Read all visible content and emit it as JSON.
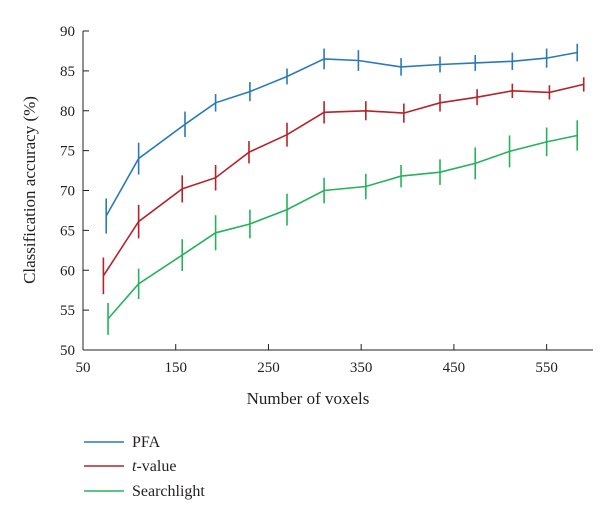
{
  "chart_data": {
    "type": "line",
    "xlabel": "Number of  voxels",
    "ylabel": "Classification accuracy (%)",
    "xlim": [
      50,
      600
    ],
    "ylim": [
      50,
      90
    ],
    "xticks": [
      50,
      150,
      250,
      350,
      450,
      550
    ],
    "yticks": [
      50,
      55,
      60,
      65,
      70,
      75,
      80,
      85,
      90
    ],
    "error_bars": true,
    "grid": false,
    "legend": {
      "placement": "bottom-left"
    },
    "series": [
      {
        "name": "PFA",
        "color": "#2a7ab8",
        "x": [
          75,
          110,
          160,
          193,
          230,
          270,
          310,
          347,
          393,
          435,
          473,
          513,
          550,
          583
        ],
        "y": [
          66.8,
          74.0,
          78.3,
          81.0,
          82.4,
          84.3,
          86.5,
          86.3,
          85.5,
          85.8,
          86.0,
          86.2,
          86.6,
          87.3
        ],
        "err": [
          2.2,
          2.0,
          1.6,
          1.1,
          1.2,
          1.0,
          1.3,
          1.3,
          1.1,
          1.0,
          1.0,
          1.1,
          1.2,
          1.1
        ]
      },
      {
        "name": "t-value",
        "color": "#b5232a",
        "x": [
          72,
          110,
          157,
          193,
          229,
          270,
          310,
          355,
          396,
          435,
          475,
          513,
          553,
          590
        ],
        "y": [
          59.3,
          66.1,
          70.2,
          71.6,
          74.8,
          77.0,
          79.8,
          80.0,
          79.7,
          81.0,
          81.7,
          82.5,
          82.3,
          83.3
        ],
        "err": [
          2.3,
          2.1,
          1.7,
          1.6,
          1.4,
          1.5,
          1.4,
          1.2,
          1.2,
          1.1,
          1.0,
          0.9,
          0.9,
          0.9
        ]
      },
      {
        "name": "Searchlight",
        "color": "#25b25a",
        "x": [
          77,
          110,
          157,
          193,
          230,
          270,
          310,
          355,
          393,
          435,
          473,
          510,
          550,
          583
        ],
        "y": [
          53.9,
          58.3,
          61.9,
          64.7,
          65.8,
          67.6,
          70.0,
          70.5,
          71.8,
          72.3,
          73.4,
          74.9,
          76.1,
          76.9
        ],
        "err": [
          2.0,
          1.9,
          2.0,
          2.2,
          1.8,
          2.0,
          1.6,
          1.6,
          1.4,
          1.6,
          2.0,
          2.0,
          1.8,
          1.9
        ]
      }
    ]
  },
  "legend_labels": {
    "pfa": "PFA",
    "t_italic": "t",
    "t_rest": "-value",
    "searchlight": "Searchlight"
  }
}
